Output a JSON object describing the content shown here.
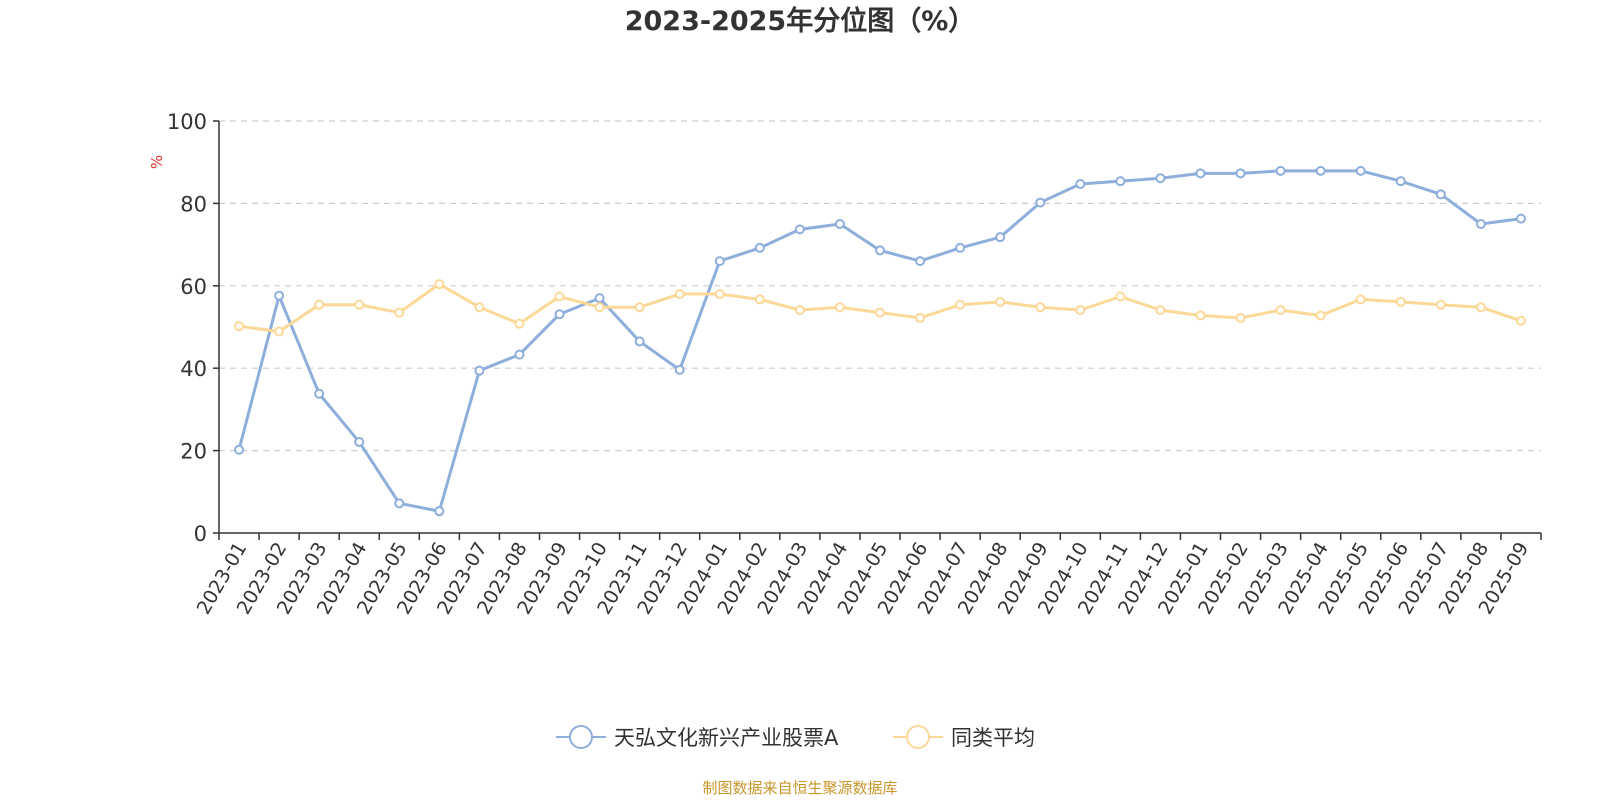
{
  "chart_data": {
    "type": "line",
    "title": "2023-2025年分位图（%）",
    "ylabel": "%",
    "ylim": [
      0,
      100
    ],
    "yticks": [
      0,
      20,
      40,
      60,
      80,
      100
    ],
    "grid": true,
    "legend_position": "bottom-center",
    "categories": [
      "2023-01",
      "2023-02",
      "2023-03",
      "2023-04",
      "2023-05",
      "2023-06",
      "2023-07",
      "2023-08",
      "2023-09",
      "2023-10",
      "2023-11",
      "2023-12",
      "2024-01",
      "2024-02",
      "2024-03",
      "2024-04",
      "2024-05",
      "2024-06",
      "2024-07",
      "2024-08",
      "2024-09",
      "2024-10",
      "2024-11",
      "2024-12",
      "2025-01",
      "2025-02",
      "2025-03",
      "2025-04",
      "2025-05",
      "2025-06",
      "2025-07",
      "2025-08",
      "2025-09"
    ],
    "series": [
      {
        "name": "天弘文化新兴产业股票A",
        "color": "#8eaedb",
        "values": [
          20.2,
          57.6,
          33.8,
          22.1,
          7.2,
          5.3,
          39.4,
          43.3,
          53.1,
          57.0,
          46.5,
          39.6,
          66.0,
          69.2,
          73.7,
          75.0,
          68.6,
          66.0,
          69.2,
          71.8,
          80.2,
          84.7,
          85.4,
          86.1,
          87.3,
          87.3,
          87.9,
          87.9,
          87.9,
          85.4,
          82.2,
          75.0,
          76.3
        ]
      },
      {
        "name": "同类平均",
        "color": "#fcd898",
        "values": [
          50.2,
          48.9,
          55.4,
          55.4,
          53.5,
          60.4,
          54.8,
          50.8,
          57.4,
          54.8,
          54.8,
          58.0,
          58.0,
          56.7,
          54.1,
          54.8,
          53.5,
          52.2,
          55.4,
          56.1,
          54.8,
          54.1,
          57.4,
          54.1,
          52.8,
          52.2,
          54.1,
          52.8,
          56.7,
          56.1,
          55.4,
          54.8,
          51.5
        ]
      }
    ]
  },
  "source_note": "制图数据来自恒生聚源数据库"
}
